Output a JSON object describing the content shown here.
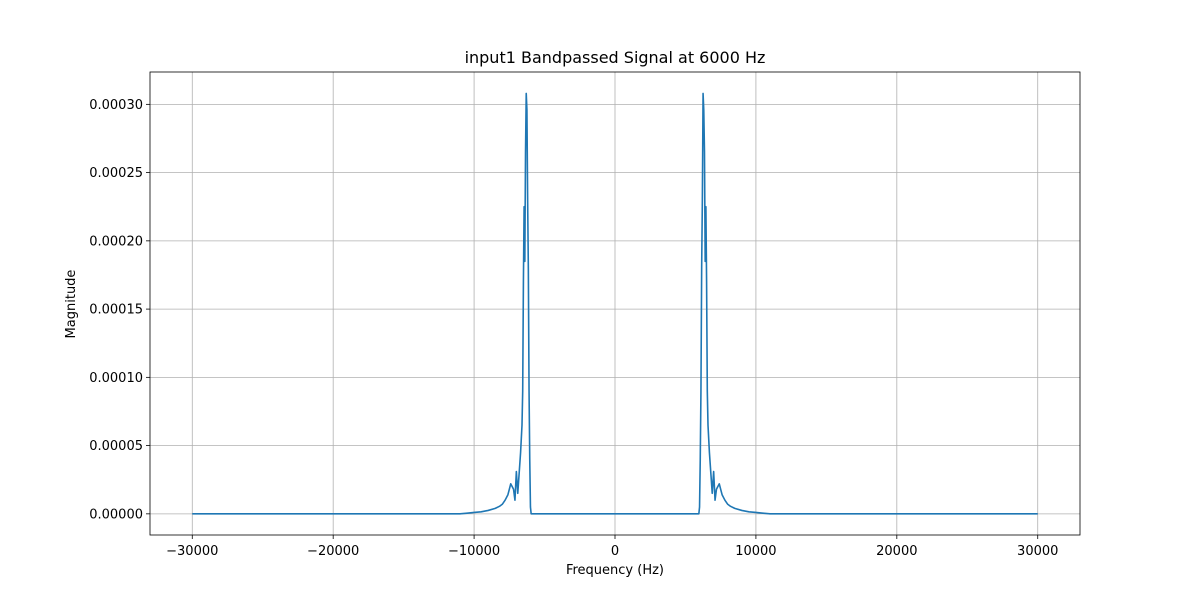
{
  "chart_data": {
    "type": "line",
    "title": "input1 Bandpassed Signal at 6000 Hz",
    "xlabel": "Frequency (Hz)",
    "ylabel": "Magnitude",
    "xlim": [
      -33000,
      33000
    ],
    "ylim": [
      -1.55e-05,
      0.0003237
    ],
    "xticks": [
      -30000,
      -20000,
      -10000,
      0,
      10000,
      20000,
      30000
    ],
    "xtick_labels": [
      "−30000",
      "−20000",
      "−10000",
      "0",
      "10000",
      "20000",
      "30000"
    ],
    "yticks": [
      0,
      5e-05,
      0.0001,
      0.00015,
      0.0002,
      0.00025,
      0.0003
    ],
    "ytick_labels": [
      "0.00000",
      "0.00005",
      "0.00010",
      "0.00015",
      "0.00020",
      "0.00025",
      "0.00030"
    ],
    "grid": true,
    "series_color": "#1f77b4",
    "series": [
      {
        "x": [
          -30000,
          -11000,
          -10500,
          -10000,
          -9500,
          -9000,
          -8500,
          -8200,
          -8000,
          -7800,
          -7600,
          -7500,
          -7400,
          -7300,
          -7200,
          -7100,
          -7000,
          -6900,
          -6800,
          -6700,
          -6600,
          -6550,
          -6500,
          -6450,
          -6400,
          -6350,
          -6300,
          -6250,
          -6200,
          -6150,
          -6100,
          -6050,
          -6000,
          -5950,
          5950,
          6000,
          6050,
          6100,
          6150,
          6200,
          6250,
          6300,
          6350,
          6400,
          6450,
          6500,
          6550,
          6600,
          6700,
          6800,
          6900,
          7000,
          7100,
          7200,
          7300,
          7400,
          7500,
          7600,
          7800,
          8000,
          8200,
          8500,
          9000,
          9500,
          10000,
          10500,
          11000,
          30000
        ],
        "y": [
          0,
          0,
          5e-07,
          1e-06,
          1.5e-06,
          2.5e-06,
          4e-06,
          5.5e-06,
          7e-06,
          1e-05,
          1.4e-05,
          1.8e-05,
          2.2e-05,
          2e-05,
          1.8e-05,
          1e-05,
          3.1e-05,
          1.5e-05,
          3e-05,
          4.5e-05,
          6.5e-05,
          9e-05,
          0.00017,
          0.000225,
          0.000185,
          0.000265,
          0.000308,
          0.000296,
          0.00023,
          0.00018,
          9e-05,
          4e-05,
          5e-06,
          0,
          0,
          5e-06,
          4e-05,
          9e-05,
          0.00018,
          0.00023,
          0.000308,
          0.000296,
          0.000265,
          0.000185,
          0.000225,
          0.00017,
          9e-05,
          6.5e-05,
          4.5e-05,
          3e-05,
          1.5e-05,
          3.1e-05,
          1e-05,
          1.8e-05,
          2e-05,
          2.2e-05,
          1.8e-05,
          1.4e-05,
          1e-05,
          7e-06,
          5.5e-06,
          4e-06,
          2.5e-06,
          1.5e-06,
          1e-06,
          5e-07,
          0,
          0
        ]
      }
    ]
  }
}
